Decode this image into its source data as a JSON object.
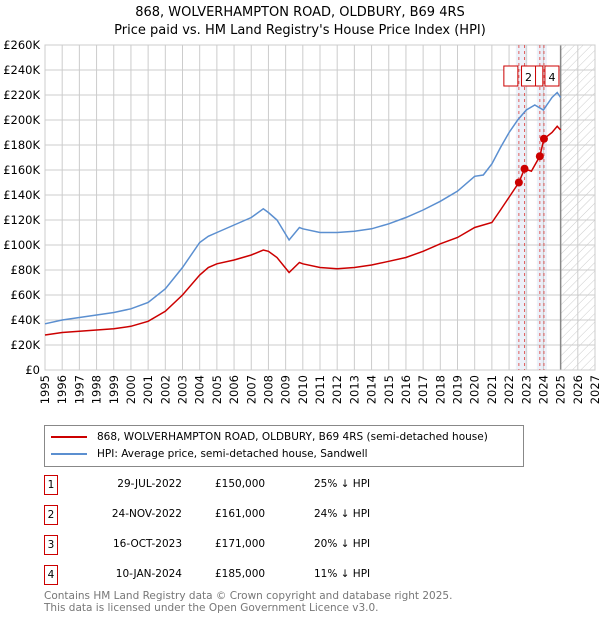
{
  "chart_data": {
    "type": "line",
    "title": "868, WOLVERHAMPTON ROAD, OLDBURY, B69 4RS",
    "subtitle": "Price paid vs. HM Land Registry's House Price Index (HPI)",
    "xlim": [
      1995,
      2027
    ],
    "ylim": [
      0,
      260000
    ],
    "x_ticks": [
      "1995",
      "1996",
      "1997",
      "1998",
      "1999",
      "2000",
      "2001",
      "2002",
      "2003",
      "2004",
      "2005",
      "2006",
      "2007",
      "2008",
      "2009",
      "2010",
      "2011",
      "2012",
      "2013",
      "2014",
      "2015",
      "2016",
      "2017",
      "2018",
      "2019",
      "2020",
      "2021",
      "2022",
      "2023",
      "2024",
      "2025",
      "2026",
      "2027"
    ],
    "y_ticks": [
      {
        "v": 0,
        "label": "£0"
      },
      {
        "v": 20000,
        "label": "£20K"
      },
      {
        "v": 40000,
        "label": "£40K"
      },
      {
        "v": 60000,
        "label": "£60K"
      },
      {
        "v": 80000,
        "label": "£80K"
      },
      {
        "v": 100000,
        "label": "£100K"
      },
      {
        "v": 120000,
        "label": "£120K"
      },
      {
        "v": 140000,
        "label": "£140K"
      },
      {
        "v": 160000,
        "label": "£160K"
      },
      {
        "v": 180000,
        "label": "£180K"
      },
      {
        "v": 200000,
        "label": "£200K"
      },
      {
        "v": 220000,
        "label": "£220K"
      },
      {
        "v": 240000,
        "label": "£240K"
      },
      {
        "v": 260000,
        "label": "£260K"
      }
    ],
    "grid": true,
    "future_hatch_from": 2025,
    "series": [
      {
        "name": "868, WOLVERHAMPTON ROAD, OLDBURY, B69 4RS (semi-detached house)",
        "color": "#cc0000",
        "x": [
          1995,
          1996,
          1997,
          1998,
          1999,
          2000,
          2001,
          2002,
          2003,
          2004,
          2004.5,
          2005,
          2006,
          2007,
          2007.7,
          2008,
          2008.5,
          2009.2,
          2009.8,
          2010,
          2011,
          2012,
          2013,
          2014,
          2015,
          2016,
          2017,
          2018,
          2019,
          2020,
          2021,
          2021.5,
          2022.57,
          2022.9,
          2023.3,
          2023.79,
          2024.03,
          2024.5,
          2024.8,
          2025
        ],
        "y": [
          28000,
          30000,
          31000,
          32000,
          33000,
          35000,
          39000,
          47000,
          60000,
          76000,
          82000,
          85000,
          88000,
          92000,
          96000,
          95000,
          90000,
          78000,
          86000,
          85000,
          82000,
          81000,
          82000,
          84000,
          87000,
          90000,
          95000,
          101000,
          106000,
          114000,
          118000,
          128000,
          150000,
          161000,
          159000,
          171000,
          185000,
          190000,
          195000,
          192000
        ]
      },
      {
        "name": "HPI: Average price, semi-detached house, Sandwell",
        "color": "#5b8fd0",
        "x": [
          1995,
          1996,
          1997,
          1998,
          1999,
          2000,
          2001,
          2002,
          2003,
          2004,
          2004.5,
          2005,
          2006,
          2007,
          2007.7,
          2008,
          2008.5,
          2009.2,
          2009.8,
          2010,
          2011,
          2012,
          2013,
          2014,
          2015,
          2016,
          2017,
          2018,
          2019,
          2020,
          2020.5,
          2021,
          2021.5,
          2022,
          2022.5,
          2023,
          2023.5,
          2024,
          2024.5,
          2024.8,
          2025
        ],
        "y": [
          37000,
          40000,
          42000,
          44000,
          46000,
          49000,
          54000,
          65000,
          82000,
          102000,
          107000,
          110000,
          116000,
          122000,
          129000,
          126000,
          120000,
          104000,
          114000,
          113000,
          110000,
          110000,
          111000,
          113000,
          117000,
          122000,
          128000,
          135000,
          143000,
          155000,
          156000,
          165000,
          178000,
          190000,
          200000,
          208000,
          212000,
          208000,
          218000,
          222000,
          218000
        ]
      }
    ],
    "sales": [
      {
        "id": "1",
        "x": 2022.57,
        "y": 150000,
        "date": "29-JUL-2022",
        "price": "£150,000",
        "hpi": "25% ↓ HPI"
      },
      {
        "id": "2",
        "x": 2022.9,
        "y": 161000,
        "date": "24-NOV-2022",
        "price": "£161,000",
        "hpi": "24% ↓ HPI"
      },
      {
        "id": "3",
        "x": 2023.79,
        "y": 171000,
        "date": "16-OCT-2023",
        "price": "£171,000",
        "hpi": "20% ↓ HPI"
      },
      {
        "id": "4",
        "x": 2024.03,
        "y": 185000,
        "date": "10-JAN-2024",
        "price": "£185,000",
        "hpi": "11% ↓ HPI"
      }
    ]
  },
  "footer": {
    "line1": "Contains HM Land Registry data © Crown copyright and database right 2025.",
    "line2": "This data is licensed under the Open Government Licence v3.0."
  }
}
